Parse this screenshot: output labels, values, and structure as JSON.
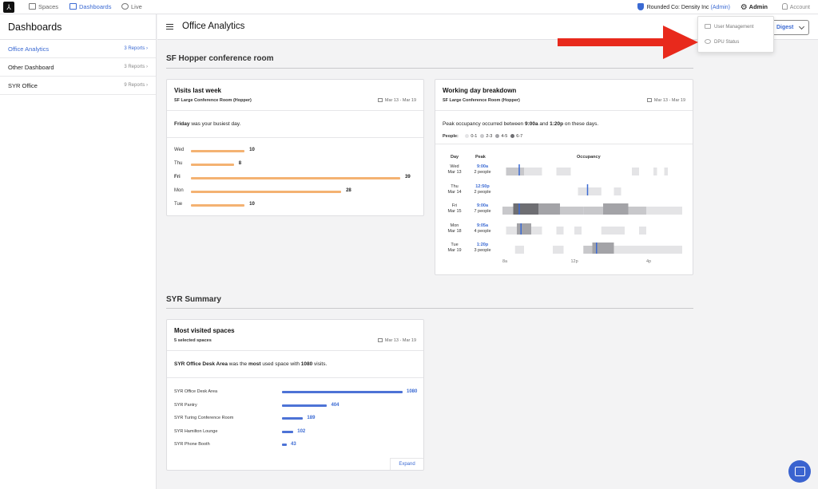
{
  "nav": {
    "logo_glyph": "⅄",
    "links": [
      {
        "label": "Spaces",
        "icon": "grid-icon",
        "active": false
      },
      {
        "label": "Dashboards",
        "icon": "dashboard-icon",
        "active": true
      },
      {
        "label": "Live",
        "icon": "clock-icon",
        "active": false
      }
    ],
    "org_prefix": "Rounded Co: Density Inc",
    "org_role": "(Admin)",
    "admin_label": "Admin",
    "account_label": "Account"
  },
  "sidebar": {
    "title": "Dashboards",
    "items": [
      {
        "label": "Office Analytics",
        "count": "3 Reports",
        "active": true
      },
      {
        "label": "Other Dashboard",
        "count": "3 Reports",
        "active": false
      },
      {
        "label": "SYR Office",
        "count": "9 Reports",
        "active": false
      }
    ]
  },
  "header": {
    "title": "Office Analytics",
    "digest_label": "Digest"
  },
  "dropdown": {
    "items": [
      {
        "label": "User Management",
        "icon": "users-icon"
      },
      {
        "label": "DPU Status",
        "icon": "heart-monitor-icon"
      }
    ]
  },
  "annotation": {
    "arrow_color": "#e8291c"
  },
  "sections": [
    {
      "title": "SF Hopper conference room"
    },
    {
      "title": "SYR Summary"
    }
  ],
  "visits_card": {
    "title": "Visits last week",
    "subtitle": "SF Large Conference Room (Hopper)",
    "date_range": "Mar 13 - Mar 19",
    "summary_bold": "Friday",
    "summary_rest": " was your busiest day.",
    "bar_color": "#f4b272",
    "bars": [
      {
        "day": "Wed",
        "value": 10,
        "bold": false
      },
      {
        "day": "Thu",
        "value": 8,
        "bold": false
      },
      {
        "day": "Fri",
        "value": 39,
        "bold": true
      },
      {
        "day": "Mon",
        "value": 28,
        "bold": false
      },
      {
        "day": "Tue",
        "value": 10,
        "bold": false
      }
    ]
  },
  "working_card": {
    "title": "Working day breakdown",
    "subtitle": "SF Large Conference Room (Hopper)",
    "date_range": "Mar 13 - Mar 19",
    "summary_pre": "Peak occupancy occurred between ",
    "summary_t1": "9:00a",
    "summary_mid": " and ",
    "summary_t2": "1:20p",
    "summary_post": " on these days.",
    "legend_label": "People:",
    "legend": [
      {
        "label": "0-1",
        "color": "#e4e4e6"
      },
      {
        "label": "2-3",
        "color": "#c8c8cb"
      },
      {
        "label": "4-5",
        "color": "#a3a3a7"
      },
      {
        "label": "6-7",
        "color": "#6e6e72"
      }
    ],
    "col_day": "Day",
    "col_peak": "Peak",
    "col_occ": "Occupancy",
    "peak_color": "#3b6ad3",
    "rows": [
      {
        "day": "Wed",
        "date": "Mar 13",
        "time": "9:00a",
        "people": "2 people",
        "peak": 0.09
      },
      {
        "day": "Thu",
        "date": "Mar 14",
        "time": "12:50p",
        "people": "2 people",
        "peak": 0.47
      },
      {
        "day": "Fri",
        "date": "Mar 15",
        "time": "9:00a",
        "people": "7 people",
        "peak": 0.09
      },
      {
        "day": "Mon",
        "date": "Mar 18",
        "time": "9:05a",
        "people": "4 people",
        "peak": 0.1
      },
      {
        "day": "Tue",
        "date": "Mar 19",
        "time": "1:20p",
        "people": "3 people",
        "peak": 0.52
      }
    ],
    "ticks": [
      "8a",
      "12p",
      "4p"
    ]
  },
  "most_card": {
    "title": "Most visited spaces",
    "subtitle": "5 selected spaces",
    "date_range": "Mar 13 - Mar 19",
    "summary_bold1": "SYR Office Desk Area",
    "summary_mid": " was the ",
    "summary_bold2": "most",
    "summary_mid2": " used space with ",
    "summary_bold3": "1080",
    "summary_post": " visits.",
    "bar_color": "#4d73d6",
    "bars": [
      {
        "label": "SYR Office Desk Area",
        "value": 1080
      },
      {
        "label": "SYR Pantry",
        "value": 404
      },
      {
        "label": "SYR Turing Conference Room",
        "value": 189
      },
      {
        "label": "SYR Hamilton Lounge",
        "value": 102
      },
      {
        "label": "SYR Phone Booth",
        "value": 43
      }
    ],
    "expand_label": "Expand"
  }
}
